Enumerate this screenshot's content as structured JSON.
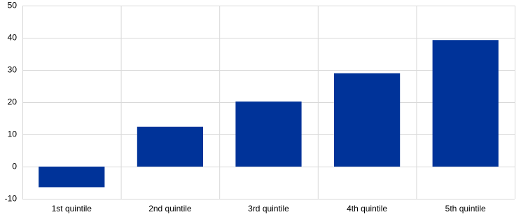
{
  "chart_data": {
    "type": "bar",
    "categories": [
      "1st quintile",
      "2nd quintile",
      "3rd quintile",
      "4th quintile",
      "5th quintile"
    ],
    "values": [
      -6.4,
      12.4,
      20.2,
      29.0,
      39.3
    ],
    "color": "#003399",
    "ylim": [
      -10,
      50
    ],
    "yticks": [
      -10,
      0,
      10,
      20,
      30,
      40,
      50
    ],
    "grid": true
  }
}
